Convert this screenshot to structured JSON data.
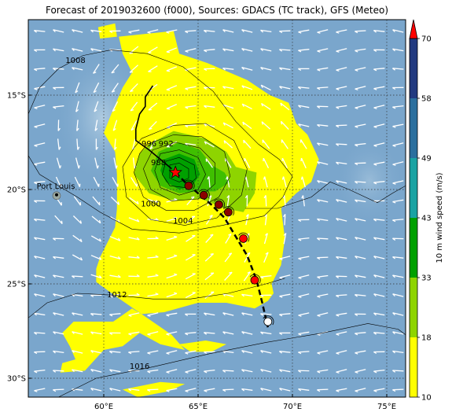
{
  "title": "Forecast of 2019032600 (f000), Sources: GDACS (TC track), GFS (Meteo)",
  "map": {
    "lon_range": [
      56,
      76
    ],
    "lat_range": [
      -31,
      -11
    ],
    "lon_ticks": [
      {
        "value": 60,
        "label": "60°E"
      },
      {
        "value": 65,
        "label": "65°E"
      },
      {
        "value": 70,
        "label": "70°E"
      },
      {
        "value": 75,
        "label": "75°E"
      }
    ],
    "lat_ticks": [
      {
        "value": -15,
        "label": "15°S"
      },
      {
        "value": -20,
        "label": "20°S"
      },
      {
        "value": -25,
        "label": "25°S"
      },
      {
        "value": -30,
        "label": "30°S"
      }
    ],
    "grid": true,
    "ocean_color": "#7aa6cc",
    "place": {
      "name": "Port Louis",
      "lon": 57.5,
      "lat": -20.2
    },
    "current_position": {
      "lon": 63.8,
      "lat": -19.1,
      "marker": "red-star"
    },
    "past_track": [
      [
        62.6,
        -14.5
      ],
      [
        62.2,
        -15.1
      ],
      [
        62.2,
        -15.6
      ],
      [
        61.9,
        -16.0
      ],
      [
        61.7,
        -16.8
      ],
      [
        61.7,
        -17.4
      ],
      [
        62.4,
        -17.9
      ],
      [
        63.0,
        -18.4
      ],
      [
        63.6,
        -18.9
      ]
    ],
    "forecast_track": [
      [
        63.8,
        -19.1
      ],
      [
        64.3,
        -19.6
      ],
      [
        65.0,
        -20.2
      ],
      [
        65.7,
        -20.8
      ],
      [
        66.4,
        -21.5
      ],
      [
        67.0,
        -22.5
      ],
      [
        67.6,
        -23.5
      ],
      [
        68.1,
        -24.8
      ],
      [
        68.4,
        -26.0
      ],
      [
        68.7,
        -27.3
      ]
    ],
    "forecast_points": [
      {
        "lon": 64.5,
        "lat": -19.8,
        "color": "#8b0000"
      },
      {
        "lon": 65.3,
        "lat": -20.3,
        "color": "#8b0000"
      },
      {
        "lon": 66.1,
        "lat": -20.8,
        "color": "#8b0000"
      },
      {
        "lon": 66.6,
        "lat": -21.2,
        "color": "#8b0000"
      },
      {
        "lon": 67.4,
        "lat": -22.6,
        "color": "#ff0000"
      },
      {
        "lon": 68.0,
        "lat": -24.8,
        "color": "#ff0000"
      },
      {
        "lon": 68.7,
        "lat": -27.0,
        "color": "#ffffff"
      }
    ],
    "isobars": [
      {
        "label": "1008",
        "label_lon": 58.5,
        "label_lat": -13.3,
        "points": [
          [
            56,
            -16.0
          ],
          [
            56.6,
            -14.6
          ],
          [
            57.6,
            -13.6
          ],
          [
            58.9,
            -12.9
          ],
          [
            60.4,
            -12.6
          ],
          [
            62.3,
            -12.8
          ],
          [
            64.2,
            -13.5
          ],
          [
            65.8,
            -14.8
          ],
          [
            67.0,
            -16.4
          ],
          [
            68.2,
            -17.6
          ],
          [
            69.3,
            -18.4
          ],
          [
            70.0,
            -19.3
          ],
          [
            69.5,
            -20.4
          ],
          [
            68.5,
            -21.4
          ],
          [
            66.3,
            -21.9
          ],
          [
            64.0,
            -22.3
          ],
          [
            61.5,
            -22.1
          ],
          [
            59.8,
            -21.2
          ],
          [
            58.6,
            -20.4
          ],
          [
            57.6,
            -19.8
          ],
          [
            56.6,
            -19.2
          ],
          [
            56,
            -18.2
          ]
        ]
      },
      {
        "label": "1004",
        "label_lon": 64.2,
        "label_lat": -21.8,
        "points": [
          [
            62.0,
            -17.3
          ],
          [
            63.7,
            -16.6
          ],
          [
            65.4,
            -16.5
          ],
          [
            66.9,
            -17.4
          ],
          [
            67.6,
            -18.9
          ],
          [
            67.3,
            -20.3
          ],
          [
            66.0,
            -21.5
          ],
          [
            64.3,
            -21.9
          ],
          [
            62.5,
            -21.6
          ],
          [
            61.2,
            -20.4
          ],
          [
            61.0,
            -18.8
          ],
          [
            61.6,
            -17.8
          ]
        ]
      },
      {
        "label": "1000",
        "label_lon": 62.5,
        "label_lat": -20.9,
        "points": [
          [
            62.3,
            -17.6
          ],
          [
            63.7,
            -17.1
          ],
          [
            65.2,
            -17.2
          ],
          [
            66.4,
            -18.0
          ],
          [
            66.7,
            -19.3
          ],
          [
            66.1,
            -20.4
          ],
          [
            64.8,
            -21.1
          ],
          [
            63.3,
            -21.1
          ],
          [
            62.1,
            -20.4
          ],
          [
            61.6,
            -19.1
          ],
          [
            61.9,
            -18.1
          ]
        ]
      },
      {
        "label": "996",
        "label_lon": 62.4,
        "label_lat": -17.7,
        "points": [
          [
            62.6,
            -17.9
          ],
          [
            63.8,
            -17.5
          ],
          [
            65.1,
            -17.8
          ],
          [
            65.9,
            -18.6
          ],
          [
            65.9,
            -19.7
          ],
          [
            65.0,
            -20.5
          ],
          [
            63.6,
            -20.6
          ],
          [
            62.5,
            -20.0
          ],
          [
            62.1,
            -18.9
          ]
        ]
      },
      {
        "label": "992",
        "label_lon": 63.3,
        "label_lat": -17.7,
        "points": [
          [
            63.0,
            -18.1
          ],
          [
            64.0,
            -17.9
          ],
          [
            65.0,
            -18.3
          ],
          [
            65.4,
            -19.2
          ],
          [
            65.0,
            -20.0
          ],
          [
            64.0,
            -20.3
          ],
          [
            63.0,
            -19.9
          ],
          [
            62.7,
            -19.0
          ]
        ]
      },
      {
        "label": "988",
        "label_lon": 62.9,
        "label_lat": -18.7,
        "points": [
          [
            63.3,
            -18.5
          ],
          [
            64.0,
            -18.3
          ],
          [
            64.8,
            -18.7
          ],
          [
            64.9,
            -19.4
          ],
          [
            64.3,
            -19.9
          ],
          [
            63.5,
            -19.8
          ],
          [
            63.1,
            -19.2
          ]
        ]
      },
      {
        "label": "",
        "label_lon": 0,
        "label_lat": 0,
        "points": [
          [
            63.5,
            -18.7
          ],
          [
            64.0,
            -18.6
          ],
          [
            64.5,
            -18.9
          ],
          [
            64.5,
            -19.4
          ],
          [
            64.0,
            -19.6
          ],
          [
            63.5,
            -19.4
          ]
        ]
      },
      {
        "label": "",
        "label_lon": 0,
        "label_lat": 0,
        "open": true,
        "points": [
          [
            67.5,
            -21.0
          ],
          [
            69.2,
            -21.0
          ],
          [
            71.0,
            -20.4
          ],
          [
            72.0,
            -19.6
          ],
          [
            73.0,
            -20.0
          ],
          [
            74.5,
            -20.7
          ],
          [
            75.3,
            -20.2
          ],
          [
            76,
            -19.8
          ]
        ]
      },
      {
        "label": "1012",
        "label_lon": 60.7,
        "label_lat": -25.7,
        "open": true,
        "points": [
          [
            56,
            -26.8
          ],
          [
            57.0,
            -26.0
          ],
          [
            58.6,
            -25.5
          ],
          [
            60.6,
            -25.6
          ],
          [
            62.6,
            -25.8
          ],
          [
            64.6,
            -25.8
          ],
          [
            66.6,
            -25.5
          ],
          [
            68.6,
            -25.0
          ],
          [
            69.6,
            -24.7
          ]
        ]
      },
      {
        "label": "1016",
        "label_lon": 61.9,
        "label_lat": -29.5,
        "open": true,
        "points": [
          [
            57.6,
            -31
          ],
          [
            59.6,
            -30.0
          ],
          [
            62.6,
            -29.4
          ],
          [
            65.6,
            -28.7
          ],
          [
            68.6,
            -28.1
          ],
          [
            71.6,
            -27.6
          ],
          [
            74.0,
            -27.1
          ],
          [
            75.6,
            -27.4
          ],
          [
            76,
            -27.7
          ]
        ]
      }
    ],
    "wind_zones": [
      {
        "color": "#ffff00",
        "points": [
          [
            60.8,
            -11.9
          ],
          [
            63.7,
            -11.6
          ],
          [
            64.0,
            -12.8
          ],
          [
            65.5,
            -13.3
          ],
          [
            67.6,
            -14.2
          ],
          [
            68.8,
            -15.0
          ],
          [
            69.8,
            -15.4
          ],
          [
            70.2,
            -16.5
          ],
          [
            70.8,
            -17.1
          ],
          [
            71.4,
            -18.4
          ],
          [
            71.0,
            -19.6
          ],
          [
            70.2,
            -20.2
          ],
          [
            69.4,
            -21.0
          ],
          [
            69.6,
            -22.6
          ],
          [
            69.4,
            -24.0
          ],
          [
            68.9,
            -25.0
          ],
          [
            69.0,
            -25.5
          ],
          [
            68.7,
            -25.9
          ],
          [
            68.0,
            -26.3
          ],
          [
            66.5,
            -26.0
          ],
          [
            65.0,
            -26.0
          ],
          [
            63.2,
            -26.5
          ],
          [
            62.0,
            -26.6
          ],
          [
            61.5,
            -26.3
          ],
          [
            60.5,
            -27.0
          ],
          [
            58.4,
            -27.0
          ],
          [
            57.8,
            -27.6
          ],
          [
            58.2,
            -28.3
          ],
          [
            58.5,
            -29.0
          ],
          [
            57.8,
            -29.2
          ],
          [
            57.7,
            -29.7
          ],
          [
            59.0,
            -29.6
          ],
          [
            60.0,
            -28.5
          ],
          [
            61.0,
            -28.3
          ],
          [
            61.9,
            -27.6
          ],
          [
            63.0,
            -28.2
          ],
          [
            64.3,
            -28.5
          ],
          [
            63.6,
            -27.7
          ],
          [
            60.7,
            -25.7
          ],
          [
            59.6,
            -24.9
          ],
          [
            59.6,
            -24.2
          ],
          [
            59.8,
            -23.6
          ],
          [
            60.6,
            -22.0
          ],
          [
            60.7,
            -21.0
          ],
          [
            60.7,
            -19.2
          ],
          [
            60.6,
            -18.0
          ],
          [
            60.0,
            -17.0
          ],
          [
            60.4,
            -16.0
          ],
          [
            61.0,
            -14.6
          ],
          [
            61.5,
            -13.8
          ],
          [
            61.0,
            -12.8
          ]
        ]
      },
      {
        "color": "#ffff00",
        "points": [
          [
            59.7,
            -11.4
          ],
          [
            60.6,
            -11.2
          ],
          [
            60.7,
            -11.9
          ],
          [
            59.8,
            -12.0
          ]
        ]
      },
      {
        "color": "#ffff00",
        "points": [
          [
            61.0,
            -30.6
          ],
          [
            63.0,
            -30.2
          ],
          [
            64.3,
            -30.3
          ],
          [
            63.4,
            -30.7
          ],
          [
            61.8,
            -31.0
          ]
        ]
      },
      {
        "color": "#ffff00",
        "points": [
          [
            64.0,
            -28.2
          ],
          [
            65.4,
            -28.0
          ],
          [
            66.5,
            -28.2
          ],
          [
            65.7,
            -28.6
          ],
          [
            64.6,
            -28.6
          ]
        ]
      },
      {
        "color": "#8ed400",
        "points": [
          [
            62.4,
            -17.6
          ],
          [
            63.7,
            -16.9
          ],
          [
            65.4,
            -17.3
          ],
          [
            66.5,
            -18.0
          ],
          [
            67.0,
            -18.8
          ],
          [
            68.1,
            -19.1
          ],
          [
            68.0,
            -20.2
          ],
          [
            67.4,
            -21.2
          ],
          [
            66.4,
            -21.0
          ],
          [
            65.2,
            -20.5
          ],
          [
            63.8,
            -20.6
          ],
          [
            62.4,
            -20.2
          ],
          [
            61.6,
            -19.2
          ],
          [
            61.9,
            -18.1
          ]
        ]
      },
      {
        "color": "#3fbf00",
        "points": [
          [
            62.9,
            -18.0
          ],
          [
            64.0,
            -17.5
          ],
          [
            65.1,
            -17.9
          ],
          [
            65.7,
            -18.7
          ],
          [
            66.4,
            -19.1
          ],
          [
            66.7,
            -19.6
          ],
          [
            65.9,
            -20.1
          ],
          [
            65.0,
            -20.1
          ],
          [
            64.0,
            -20.2
          ],
          [
            63.0,
            -19.8
          ],
          [
            62.5,
            -19.0
          ]
        ]
      },
      {
        "color": "#00a000",
        "points": [
          [
            63.2,
            -18.4
          ],
          [
            64.0,
            -18.1
          ],
          [
            64.8,
            -18.4
          ],
          [
            65.1,
            -19.2
          ],
          [
            64.7,
            -19.8
          ],
          [
            64.0,
            -20.0
          ],
          [
            63.3,
            -19.6
          ],
          [
            63.0,
            -19.0
          ]
        ]
      }
    ],
    "wind_arrow_spacing_deg": 1.0
  },
  "colorbar": {
    "label": "10 m wind speed (m/s)",
    "ticks": [
      10,
      18,
      33,
      43,
      49,
      58,
      70
    ],
    "tick_labels": [
      "10",
      "18",
      "33",
      "43",
      "49",
      "58",
      "70"
    ],
    "colors": [
      "#ffff00",
      "#8ed400",
      "#00a000",
      "#1aa3a3",
      "#2b6f9e",
      "#223a80",
      "#1a1f5e"
    ],
    "extend_color": "#ff0000"
  }
}
